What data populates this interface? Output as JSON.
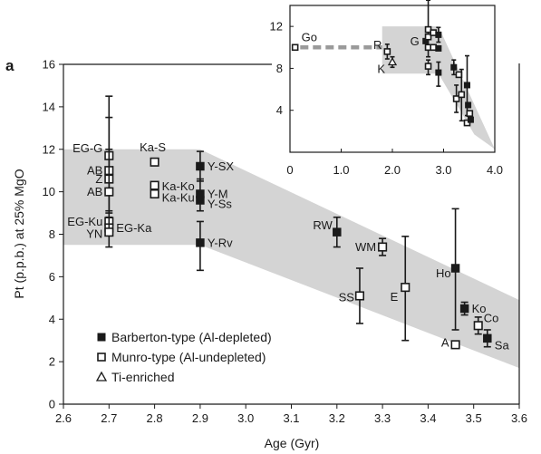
{
  "chart_data": {
    "type": "scatter",
    "panel_label": "a",
    "xlabel": "Age (Gyr)",
    "ylabel": "Pt (p.p.b.) at 25% MgO",
    "xlim": [
      2.6,
      3.6
    ],
    "ylim": [
      0,
      16
    ],
    "xticks": [
      "2.6",
      "2.7",
      "2.8",
      "2.9",
      "3.0",
      "3.1",
      "3.2",
      "3.3",
      "3.4",
      "3.5",
      "3.6"
    ],
    "yticks": [
      "0",
      "2",
      "4",
      "6",
      "8",
      "10",
      "12",
      "14",
      "16"
    ],
    "grid": false,
    "legend_position": "bottom-left",
    "legend": [
      {
        "marker": "filled-square",
        "label": "Barberton-type (Al-depleted)"
      },
      {
        "marker": "open-square",
        "label": "Munro-type (Al-undepleted)"
      },
      {
        "marker": "open-triangle",
        "label": "Ti-enriched"
      }
    ],
    "envelope": [
      [
        2.6,
        12.0
      ],
      [
        2.9,
        12.0
      ],
      [
        3.6,
        4.9
      ],
      [
        3.6,
        1.7
      ],
      [
        2.9,
        7.5
      ],
      [
        2.6,
        7.5
      ]
    ],
    "points": [
      {
        "label": "EG-G",
        "x": 2.7,
        "y": 11.7,
        "type": "munro",
        "err": [
          9.1,
          13.5
        ]
      },
      {
        "label": "AB",
        "x": 2.7,
        "y": 11.0,
        "type": "munro",
        "err": [
          9.0,
          14.5
        ]
      },
      {
        "label": "Z",
        "x": 2.7,
        "y": 10.6,
        "type": "munro",
        "err": null
      },
      {
        "label": "AB",
        "x": 2.7,
        "y": 10.0,
        "type": "munro",
        "err": [
          8.5,
          12.0
        ]
      },
      {
        "label": "EG-Ku",
        "x": 2.7,
        "y": 8.6,
        "type": "munro",
        "err": null
      },
      {
        "label": "EG-Ka",
        "x": 2.7,
        "y": 8.3,
        "type": "munro",
        "err": null
      },
      {
        "label": "YN",
        "x": 2.7,
        "y": 8.1,
        "type": "munro",
        "err": [
          7.4,
          8.8
        ]
      },
      {
        "label": "Ka-S",
        "x": 2.8,
        "y": 11.4,
        "type": "munro",
        "err": null
      },
      {
        "label": "Ka-Ko",
        "x": 2.8,
        "y": 10.3,
        "type": "munro",
        "err": null
      },
      {
        "label": "Ka-Ku",
        "x": 2.8,
        "y": 9.9,
        "type": "munro",
        "err": null
      },
      {
        "label": "Y-SX",
        "x": 2.9,
        "y": 11.2,
        "type": "barberton",
        "err": [
          10.5,
          11.9
        ]
      },
      {
        "label": "Y-M",
        "x": 2.9,
        "y": 9.9,
        "type": "barberton",
        "err": [
          9.1,
          10.6
        ]
      },
      {
        "label": "Y-Ss",
        "x": 2.9,
        "y": 9.6,
        "type": "barberton",
        "err": null
      },
      {
        "label": "Y-Rv",
        "x": 2.9,
        "y": 7.6,
        "type": "barberton",
        "err": [
          6.3,
          8.6
        ]
      },
      {
        "label": "RW",
        "x": 3.2,
        "y": 8.1,
        "type": "barberton",
        "err": [
          7.4,
          8.8
        ]
      },
      {
        "label": "WM",
        "x": 3.3,
        "y": 7.4,
        "type": "munro",
        "err": [
          7.0,
          7.8
        ]
      },
      {
        "label": "SS",
        "x": 3.25,
        "y": 5.1,
        "type": "munro",
        "err": [
          3.8,
          6.4
        ]
      },
      {
        "label": "E",
        "x": 3.35,
        "y": 5.5,
        "type": "munro",
        "err": [
          3.0,
          7.9
        ]
      },
      {
        "label": "Ho",
        "x": 3.46,
        "y": 6.4,
        "type": "barberton",
        "err": [
          3.5,
          9.2
        ]
      },
      {
        "label": "Ko",
        "x": 3.48,
        "y": 4.5,
        "type": "barberton",
        "err": [
          4.2,
          4.8
        ]
      },
      {
        "label": "Co",
        "x": 3.51,
        "y": 3.7,
        "type": "munro",
        "err": [
          3.3,
          4.1
        ]
      },
      {
        "label": "A",
        "x": 3.46,
        "y": 2.8,
        "type": "munro",
        "err": null
      },
      {
        "label": "Sa",
        "x": 3.53,
        "y": 3.1,
        "type": "barberton",
        "err": [
          2.7,
          3.5
        ]
      }
    ],
    "inset": {
      "xlim": [
        0,
        4.0
      ],
      "ylim": [
        0,
        14
      ],
      "xticks": [
        "0",
        "1.0",
        "2.0",
        "3.0",
        "4.0"
      ],
      "yticks": [
        "4",
        "8",
        "12"
      ],
      "envelope": [
        [
          1.8,
          12.0
        ],
        [
          2.9,
          12.0
        ],
        [
          4.0,
          0.3
        ],
        [
          3.6,
          1.7
        ],
        [
          2.9,
          7.5
        ],
        [
          1.8,
          7.5
        ]
      ],
      "dashed_line": [
        [
          0.2,
          10.0
        ],
        [
          1.8,
          10.0
        ]
      ],
      "points": [
        {
          "label": "Go",
          "x": 0.1,
          "y": 10.0,
          "type": "munro",
          "err": null
        },
        {
          "label": "R",
          "x": 1.9,
          "y": 9.6,
          "type": "munro",
          "err": [
            8.9,
            10.3
          ]
        },
        {
          "label": "K",
          "x": 2.0,
          "y": 8.6,
          "type": "ti",
          "err": [
            8.1,
            9.1
          ]
        },
        {
          "label": "G",
          "x": 2.65,
          "y": 10.6,
          "type": "barberton",
          "err": null
        },
        {
          "label": "",
          "x": 2.7,
          "y": 11.7,
          "type": "munro",
          "err": [
            9.1,
            14.5
          ]
        },
        {
          "label": "",
          "x": 2.7,
          "y": 11.0,
          "type": "munro",
          "err": null
        },
        {
          "label": "",
          "x": 2.7,
          "y": 10.0,
          "type": "munro",
          "err": null
        },
        {
          "label": "",
          "x": 2.7,
          "y": 8.2,
          "type": "munro",
          "err": [
            7.4,
            8.8
          ]
        },
        {
          "label": "",
          "x": 2.8,
          "y": 11.4,
          "type": "munro",
          "err": null
        },
        {
          "label": "",
          "x": 2.8,
          "y": 10.0,
          "type": "munro",
          "err": null
        },
        {
          "label": "",
          "x": 2.9,
          "y": 11.2,
          "type": "barberton",
          "err": [
            10.5,
            11.9
          ]
        },
        {
          "label": "",
          "x": 2.9,
          "y": 9.9,
          "type": "barberton",
          "err": null
        },
        {
          "label": "",
          "x": 2.9,
          "y": 7.6,
          "type": "barberton",
          "err": [
            6.3,
            8.6
          ]
        },
        {
          "label": "",
          "x": 3.2,
          "y": 8.1,
          "type": "barberton",
          "err": [
            7.4,
            8.8
          ]
        },
        {
          "label": "",
          "x": 3.3,
          "y": 7.4,
          "type": "munro",
          "err": null
        },
        {
          "label": "",
          "x": 3.25,
          "y": 5.1,
          "type": "munro",
          "err": [
            3.8,
            6.4
          ]
        },
        {
          "label": "",
          "x": 3.35,
          "y": 5.5,
          "type": "munro",
          "err": [
            3.0,
            7.9
          ]
        },
        {
          "label": "",
          "x": 3.46,
          "y": 6.4,
          "type": "barberton",
          "err": [
            3.5,
            9.2
          ]
        },
        {
          "label": "",
          "x": 3.48,
          "y": 4.5,
          "type": "barberton",
          "err": null
        },
        {
          "label": "",
          "x": 3.51,
          "y": 3.7,
          "type": "munro",
          "err": null
        },
        {
          "label": "",
          "x": 3.46,
          "y": 2.8,
          "type": "munro",
          "err": null
        },
        {
          "label": "",
          "x": 3.53,
          "y": 3.1,
          "type": "barberton",
          "err": null
        }
      ]
    },
    "colors": {
      "envelope": "#d4d4d4",
      "marker": "#1a1a1a",
      "axis": "#1a1a1a",
      "dashed": "#9a9a9a"
    }
  }
}
